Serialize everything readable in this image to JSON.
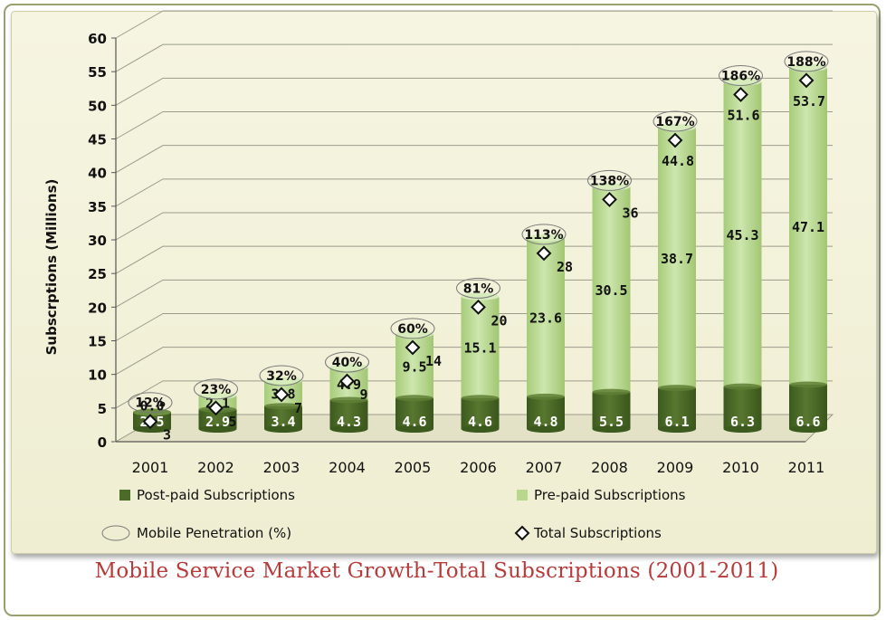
{
  "caption": "Mobile Service Market Growth-Total Subscriptions (2001-2011)",
  "colors": {
    "postpaid": "#4d6b28",
    "prepaid": "#b7d88d",
    "caption": "#b83a3a"
  },
  "chart_data": {
    "type": "bar",
    "stacked": true,
    "title": "",
    "xlabel": "",
    "ylabel": "Subscrptions (Millions)",
    "ylim": [
      0,
      60
    ],
    "yticks": [
      "0",
      "5",
      "10",
      "15",
      "20",
      "25",
      "30",
      "35",
      "40",
      "45",
      "50",
      "55",
      "60"
    ],
    "categories": [
      "2001",
      "2002",
      "2003",
      "2004",
      "2005",
      "2006",
      "2007",
      "2008",
      "2009",
      "2010",
      "2011"
    ],
    "series": [
      {
        "name": "Post-paid Subscriptions",
        "values": [
          2.5,
          2.9,
          3.4,
          4.3,
          4.6,
          4.6,
          4.8,
          5.5,
          6.1,
          6.3,
          6.6
        ]
      },
      {
        "name": "Pre-paid Subscriptions",
        "values": [
          0.0,
          2.1,
          3.8,
          4.9,
          9.5,
          15.1,
          23.6,
          30.5,
          38.7,
          45.3,
          47.1
        ]
      }
    ],
    "postpaid_labels": [
      "2.5",
      "2.9",
      "3.4",
      "4.3",
      "4.6",
      "4.6",
      "4.8",
      "5.5",
      "6.1",
      "6.3",
      "6.6"
    ],
    "prepaid_labels": [
      "0.0",
      "2.1",
      "3.8",
      "4.9",
      "9.5",
      "15.1",
      "23.6",
      "30.5",
      "38.7",
      "45.3",
      "47.1"
    ],
    "total_subscriptions": [
      3,
      5,
      7,
      9,
      14,
      20,
      28,
      36,
      44.8,
      51.6,
      53.7
    ],
    "total_labels": [
      "3",
      "5",
      "7",
      "9",
      "14",
      "20",
      "28",
      "36",
      "44.8",
      "51.6",
      "53.7"
    ],
    "mobile_penetration": [
      "12%",
      "23%",
      "32%",
      "40%",
      "60%",
      "81%",
      "113%",
      "138%",
      "167%",
      "186%",
      "188%"
    ],
    "legend": [
      {
        "label": "Post-paid Subscriptions",
        "marker": "square-dark"
      },
      {
        "label": "Pre-paid Subscriptions",
        "marker": "square-light"
      },
      {
        "label": "Mobile Penetration  (%)",
        "marker": "ellipse"
      },
      {
        "label": "Total Subscriptions",
        "marker": "diamond"
      }
    ],
    "grid": true,
    "legend_position": "bottom"
  }
}
